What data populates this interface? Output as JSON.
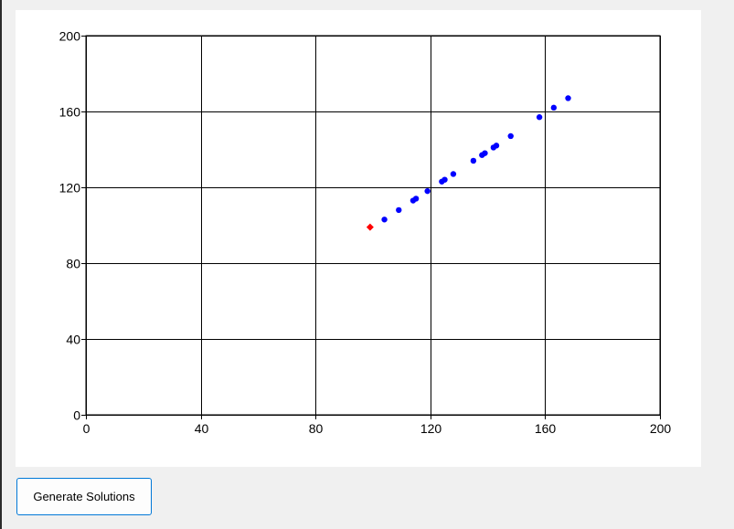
{
  "chart_data": {
    "type": "scatter",
    "xlim": [
      0,
      200
    ],
    "ylim": [
      0,
      200
    ],
    "x_ticks": [
      0,
      40,
      80,
      120,
      160,
      200
    ],
    "y_ticks": [
      0,
      40,
      80,
      120,
      160,
      200
    ],
    "grid": true,
    "series": [
      {
        "marker": "diamond",
        "color": "#ff0000",
        "points": [
          [
            99,
            99
          ]
        ]
      },
      {
        "marker": "circle",
        "color": "#0000ff",
        "points": [
          [
            104,
            103
          ],
          [
            109,
            108
          ],
          [
            114,
            113
          ],
          [
            115,
            114
          ],
          [
            119,
            118
          ],
          [
            124,
            123
          ],
          [
            125,
            124
          ],
          [
            128,
            127
          ],
          [
            135,
            134
          ],
          [
            138,
            137
          ],
          [
            139,
            138
          ],
          [
            142,
            141
          ],
          [
            143,
            142
          ],
          [
            148,
            147
          ],
          [
            158,
            157
          ],
          [
            163,
            162
          ],
          [
            168,
            167
          ]
        ]
      }
    ]
  },
  "controls": {
    "generate_label": "Generate Solutions"
  }
}
